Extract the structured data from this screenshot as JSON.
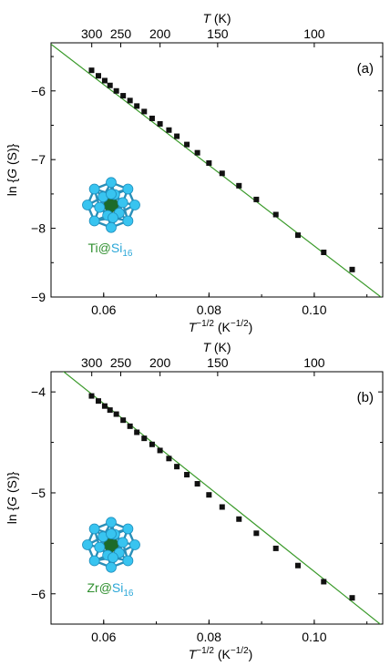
{
  "colors": {
    "fit_line": "#3a9a2a",
    "points": "#111111",
    "metal_label": "#2f8f2f",
    "cage_label": "#2aa7d8",
    "si_atom": "#38c4f0",
    "metal_atom": "#1d6b2a"
  },
  "chart_data": [
    {
      "type": "scatter",
      "panel_label": "(a)",
      "xlabel": "T",
      "xlabel_sup": "−1/2",
      "xlabel_units": " (K",
      "xlabel_units_sup": "−1/2",
      "xlabel_close": ")",
      "ylabel": "ln {G (S)}",
      "top_xlabel": "T (K)",
      "xlim": [
        0.05,
        0.113
      ],
      "ylim": [
        -9,
        -5.3
      ],
      "xticks": [
        0.06,
        0.08,
        0.1
      ],
      "xtick_labels": [
        "0.06",
        "0.08",
        "0.10"
      ],
      "yticks": [
        -6,
        -7,
        -8,
        -9
      ],
      "ytick_labels": [
        "−6",
        "−7",
        "−8",
        "−9"
      ],
      "top_ticks_T": [
        300,
        250,
        200,
        150,
        100
      ],
      "top_tick_labels": [
        "300",
        "250",
        "200",
        "150",
        "100"
      ],
      "molecule_metal": "Ti",
      "molecule_at": "@",
      "molecule_cage": "Si",
      "molecule_sub": "16",
      "fit_line": {
        "x": [
          0.05,
          0.113
        ],
        "y": [
          -5.32,
          -9.02
        ]
      },
      "series": [
        {
          "x": [
            0.0577,
            0.059,
            0.0602,
            0.0612,
            0.0624,
            0.0637,
            0.065,
            0.0663,
            0.0677,
            0.0692,
            0.0707,
            0.0724,
            0.0739,
            0.0758,
            0.0778,
            0.08,
            0.0825,
            0.0857,
            0.089,
            0.0927,
            0.0969,
            0.1018,
            0.1072
          ],
          "y": [
            -5.7,
            -5.78,
            -5.85,
            -5.92,
            -6.0,
            -6.07,
            -6.14,
            -6.22,
            -6.3,
            -6.4,
            -6.48,
            -6.57,
            -6.66,
            -6.78,
            -6.9,
            -7.05,
            -7.2,
            -7.38,
            -7.58,
            -7.8,
            -8.1,
            -8.35,
            -8.6
          ]
        }
      ]
    },
    {
      "type": "scatter",
      "panel_label": "(b)",
      "xlabel": "T",
      "xlabel_sup": "−1/2",
      "xlabel_units": " (K",
      "xlabel_units_sup": "−1/2",
      "xlabel_close": ")",
      "ylabel": "ln {G (S)}",
      "top_xlabel": "T (K)",
      "xlim": [
        0.05,
        0.113
      ],
      "ylim": [
        -6.3,
        -3.8
      ],
      "xticks": [
        0.06,
        0.08,
        0.1
      ],
      "xtick_labels": [
        "0.06",
        "0.08",
        "0.10"
      ],
      "yticks": [
        -4,
        -5,
        -6
      ],
      "ytick_labels": [
        "−4",
        "−5",
        "−6"
      ],
      "top_ticks_T": [
        300,
        250,
        200,
        150,
        100
      ],
      "top_tick_labels": [
        "300",
        "250",
        "200",
        "150",
        "100"
      ],
      "molecule_metal": "Zr",
      "molecule_at": "@",
      "molecule_cage": "Si",
      "molecule_sub": "16",
      "fit_line": {
        "x": [
          0.05,
          0.113
        ],
        "y": [
          -3.7,
          -6.32
        ]
      },
      "series": [
        {
          "x": [
            0.0577,
            0.059,
            0.0602,
            0.0612,
            0.0624,
            0.0637,
            0.065,
            0.0663,
            0.0677,
            0.0692,
            0.0707,
            0.0724,
            0.0739,
            0.0758,
            0.0778,
            0.08,
            0.0825,
            0.0857,
            0.089,
            0.0927,
            0.0969,
            0.1018,
            0.1072
          ],
          "y": [
            -4.04,
            -4.09,
            -4.14,
            -4.18,
            -4.22,
            -4.28,
            -4.34,
            -4.4,
            -4.46,
            -4.52,
            -4.58,
            -4.66,
            -4.74,
            -4.82,
            -4.91,
            -5.02,
            -5.14,
            -5.26,
            -5.4,
            -5.55,
            -5.72,
            -5.88,
            -6.04
          ]
        }
      ]
    }
  ]
}
